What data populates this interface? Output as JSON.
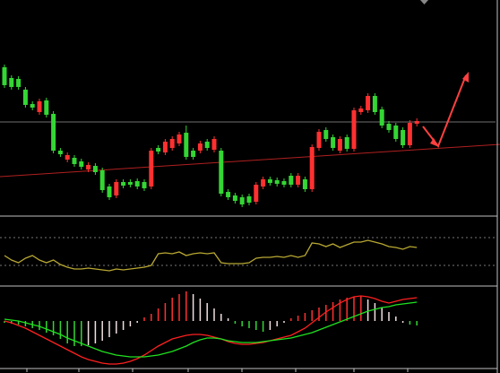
{
  "chart_data": [
    {
      "type": "candlestick",
      "up_color": "#ff3030",
      "down_color": "#34d634",
      "ylim": [
        0,
        240
      ],
      "open": [
        165,
        153,
        152,
        140,
        124,
        115,
        128,
        113,
        72,
        62,
        64,
        60,
        51,
        55,
        50,
        32,
        22,
        37,
        37,
        38,
        37,
        32,
        75,
        70,
        75,
        80,
        92,
        72,
        72,
        82,
        73,
        72,
        26,
        22,
        20,
        21,
        15,
        32,
        40,
        39,
        38,
        44,
        34,
        40,
        29,
        75,
        95,
        87,
        72,
        87,
        74,
        115,
        117,
        133,
        118,
        102,
        100,
        95,
        78,
        102
      ],
      "high": [
        168,
        156,
        155,
        143,
        127,
        130,
        131,
        116,
        75,
        70,
        67,
        63,
        59,
        58,
        53,
        35,
        40,
        40,
        40,
        41,
        40,
        75,
        78,
        85,
        88,
        93,
        100,
        75,
        83,
        85,
        88,
        75,
        29,
        25,
        23,
        24,
        37,
        43,
        43,
        42,
        41,
        47,
        47,
        43,
        79,
        96,
        98,
        90,
        88,
        90,
        120,
        122,
        136,
        136,
        121,
        105,
        103,
        98,
        106,
        108
      ],
      "low": [
        142,
        140,
        140,
        120,
        117,
        112,
        109,
        69,
        65,
        59,
        54,
        51,
        48,
        45,
        25,
        17,
        19,
        30,
        31,
        29,
        27,
        29,
        68,
        67,
        72,
        77,
        62,
        62,
        69,
        72,
        70,
        21,
        17,
        13,
        9,
        11,
        12,
        29,
        33,
        32,
        31,
        31,
        31,
        26,
        26,
        72,
        82,
        72,
        69,
        71,
        71,
        112,
        114,
        112,
        97,
        92,
        82,
        75,
        75,
        99
      ],
      "close": [
        145,
        143,
        143,
        123,
        120,
        127,
        112,
        72,
        68,
        67,
        57,
        54,
        56,
        48,
        28,
        20,
        37,
        33,
        34,
        32,
        30,
        72,
        71,
        82,
        85,
        90,
        65,
        65,
        80,
        75,
        85,
        24,
        20,
        16,
        12,
        14,
        34,
        40,
        36,
        35,
        34,
        34,
        44,
        29,
        76,
        93,
        85,
        75,
        85,
        74,
        117,
        119,
        133,
        115,
        100,
        95,
        85,
        78,
        103,
        105
      ]
    },
    {
      "type": "line",
      "color": "#b8a832",
      "ylim": [
        0,
        76
      ],
      "levels": [
        53,
        22
      ],
      "values": [
        33,
        28,
        25,
        30,
        33,
        28,
        25,
        28,
        23,
        20,
        18,
        18,
        19,
        18,
        17,
        16,
        18,
        17,
        18,
        19,
        20,
        22,
        35,
        36,
        35,
        37,
        33,
        35,
        36,
        35,
        36,
        25,
        24,
        24,
        24,
        25,
        30,
        31,
        31,
        32,
        31,
        33,
        31,
        33,
        47,
        46,
        43,
        46,
        42,
        45,
        48,
        48,
        50,
        48,
        46,
        43,
        42,
        40,
        43,
        42
      ]
    },
    {
      "type": "macd",
      "ylim": [
        -52,
        38
      ],
      "up_color": "#ff3030",
      "down_color": "#34d634",
      "fade_color": "#f0e0e0",
      "values": [
        -2,
        -3,
        -4,
        -6,
        -8,
        -10,
        -13,
        -16,
        -20,
        -25,
        -28,
        -28,
        -27,
        -25,
        -22,
        -18,
        -14,
        -10,
        -6,
        -2,
        4,
        8,
        14,
        20,
        26,
        30,
        33,
        30,
        25,
        20,
        14,
        8,
        3,
        -3,
        -6,
        -8,
        -10,
        -12,
        -10,
        -6,
        -2,
        3,
        6,
        9,
        12,
        15,
        18,
        21,
        24,
        26,
        27,
        28,
        24,
        20,
        15,
        10,
        5,
        -2,
        -4,
        -5
      ],
      "series": [
        {
          "color": "#ff2020",
          "values": [
            0,
            -2,
            -5,
            -8,
            -12,
            -16,
            -20,
            -24,
            -28,
            -32,
            -36,
            -40,
            -43,
            -45,
            -47,
            -48,
            -48,
            -47,
            -45,
            -42,
            -38,
            -33,
            -28,
            -24,
            -20,
            -18,
            -16,
            -15,
            -15,
            -16,
            -18,
            -20,
            -23,
            -25,
            -26,
            -26,
            -25,
            -24,
            -22,
            -20,
            -18,
            -16,
            -12,
            -8,
            -2,
            4,
            10,
            15,
            20,
            24,
            27,
            28,
            27,
            25,
            22,
            20,
            22,
            24,
            25,
            26
          ]
        },
        {
          "color": "#20e020",
          "values": [
            2,
            1,
            0,
            -2,
            -4,
            -6,
            -9,
            -12,
            -15,
            -19,
            -22,
            -25,
            -28,
            -31,
            -34,
            -36,
            -38,
            -39,
            -40,
            -40,
            -40,
            -39,
            -38,
            -36,
            -34,
            -31,
            -28,
            -24,
            -21,
            -19,
            -19,
            -20,
            -22,
            -23,
            -24,
            -24,
            -24,
            -23,
            -22,
            -21,
            -20,
            -19,
            -17,
            -15,
            -13,
            -10,
            -7,
            -4,
            -1,
            2,
            5,
            8,
            11,
            13,
            15,
            16,
            18,
            19,
            20,
            21
          ]
        }
      ]
    }
  ]
}
